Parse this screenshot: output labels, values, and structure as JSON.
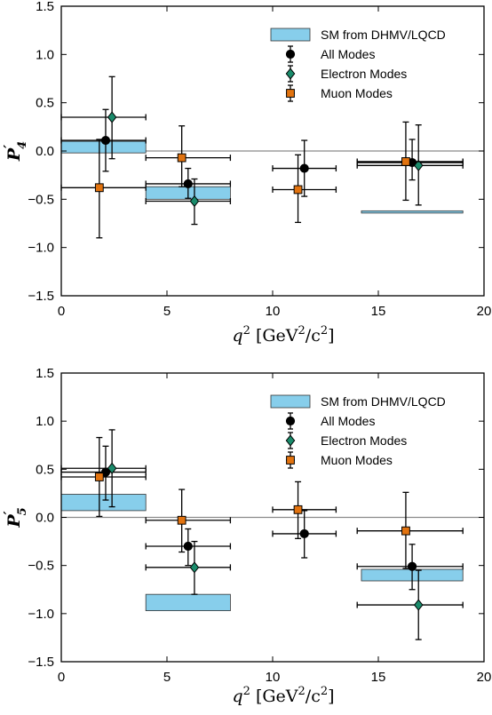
{
  "chart_data": [
    {
      "type": "scatter",
      "panel": "P4prime",
      "ylabel": {
        "main": "P",
        "prime": "′",
        "sub": "4"
      },
      "xlabel": {
        "var": "q",
        "sup": "2",
        "unit_open": "[GeV",
        "unit_sup": "2",
        "unit_close": "/c",
        "unit_sup2": "2",
        "unit_end": "]"
      },
      "xlim": [
        0,
        20
      ],
      "ylim": [
        -1.5,
        1.5
      ],
      "xticks": [
        "0",
        "5",
        "10",
        "15",
        "20"
      ],
      "yticks": [
        "−1.5",
        "−1.0",
        "−0.5",
        "0.0",
        "0.5",
        "1.0",
        "1.5"
      ],
      "reference_line_y": 0,
      "legend": {
        "placement": "top-right",
        "entries": [
          "SM from DHMV/LQCD",
          "All Modes",
          "Electron Modes",
          "Muon Modes"
        ]
      },
      "sm_prediction": {
        "name": "SM from DHMV/LQCD",
        "color": "#87ceeb",
        "bins": [
          {
            "x0": 0,
            "x1": 4,
            "y0": -0.02,
            "y1": 0.1
          },
          {
            "x0": 4,
            "x1": 8,
            "y0": -0.5,
            "y1": -0.37
          },
          {
            "x0": 14.2,
            "x1": 19,
            "y0": -0.64,
            "y1": -0.62
          }
        ]
      },
      "series": [
        {
          "name": "All Modes",
          "marker": "circle",
          "color": "#000000",
          "points": [
            {
              "x": 2.1,
              "xlo": 0,
              "xhi": 4,
              "y": 0.11,
              "ylo": -0.21,
              "yhi": 0.43
            },
            {
              "x": 6.0,
              "xlo": 4,
              "xhi": 8,
              "y": -0.34,
              "ylo": -0.49,
              "yhi": -0.18
            },
            {
              "x": 11.5,
              "xlo": 10,
              "xhi": 13,
              "y": -0.18,
              "ylo": -0.47,
              "yhi": 0.11
            },
            {
              "x": 16.6,
              "xlo": 14,
              "xhi": 19,
              "y": -0.12,
              "ylo": -0.3,
              "yhi": 0.12
            }
          ]
        },
        {
          "name": "Electron Modes",
          "marker": "diamond",
          "color": "#1a8b6b",
          "points": [
            {
              "x": 2.4,
              "xlo": 0,
              "xhi": 4,
              "y": 0.35,
              "ylo": -0.08,
              "yhi": 0.77
            },
            {
              "x": 6.3,
              "xlo": 4,
              "xhi": 8,
              "y": -0.52,
              "ylo": -0.76,
              "yhi": -0.29
            },
            {
              "x": 16.9,
              "xlo": 14,
              "xhi": 19,
              "y": -0.15,
              "ylo": -0.56,
              "yhi": 0.27
            }
          ]
        },
        {
          "name": "Muon Modes",
          "marker": "square",
          "color": "#e2730f",
          "points": [
            {
              "x": 1.8,
              "xlo": 0,
              "xhi": 4,
              "y": -0.38,
              "ylo": -0.9,
              "yhi": 0.12
            },
            {
              "x": 5.7,
              "xlo": 4,
              "xhi": 8,
              "y": -0.07,
              "ylo": -0.37,
              "yhi": 0.26
            },
            {
              "x": 11.2,
              "xlo": 10,
              "xhi": 13,
              "y": -0.4,
              "ylo": -0.74,
              "yhi": -0.04
            },
            {
              "x": 16.3,
              "xlo": 14,
              "xhi": 19,
              "y": -0.11,
              "ylo": -0.51,
              "yhi": 0.3
            }
          ]
        }
      ]
    },
    {
      "type": "scatter",
      "panel": "P5prime",
      "ylabel": {
        "main": "P",
        "prime": "′",
        "sub": "5"
      },
      "xlabel": {
        "var": "q",
        "sup": "2",
        "unit_open": "[GeV",
        "unit_sup": "2",
        "unit_close": "/c",
        "unit_sup2": "2",
        "unit_end": "]"
      },
      "xlim": [
        0,
        20
      ],
      "ylim": [
        -1.5,
        1.5
      ],
      "xticks": [
        "0",
        "5",
        "10",
        "15",
        "20"
      ],
      "yticks": [
        "−1.5",
        "−1.0",
        "−0.5",
        "0.0",
        "0.5",
        "1.0",
        "1.5"
      ],
      "reference_line_y": 0,
      "legend": {
        "placement": "top-right",
        "entries": [
          "SM from DHMV/LQCD",
          "All Modes",
          "Electron Modes",
          "Muon Modes"
        ]
      },
      "sm_prediction": {
        "name": "SM from DHMV/LQCD",
        "color": "#87ceeb",
        "bins": [
          {
            "x0": 0,
            "x1": 4,
            "y0": 0.07,
            "y1": 0.24
          },
          {
            "x0": 4,
            "x1": 8,
            "y0": -0.97,
            "y1": -0.8
          },
          {
            "x0": 14.2,
            "x1": 19,
            "y0": -0.66,
            "y1": -0.54
          }
        ]
      },
      "series": [
        {
          "name": "All Modes",
          "marker": "circle",
          "color": "#000000",
          "points": [
            {
              "x": 2.1,
              "xlo": 0,
              "xhi": 4,
              "y": 0.47,
              "ylo": 0.18,
              "yhi": 0.74
            },
            {
              "x": 6.0,
              "xlo": 4,
              "xhi": 8,
              "y": -0.3,
              "ylo": -0.5,
              "yhi": -0.12
            },
            {
              "x": 11.5,
              "xlo": 10,
              "xhi": 13,
              "y": -0.17,
              "ylo": -0.42,
              "yhi": 0.07
            },
            {
              "x": 16.6,
              "xlo": 14,
              "xhi": 19,
              "y": -0.51,
              "ylo": -0.75,
              "yhi": -0.28
            }
          ]
        },
        {
          "name": "Electron Modes",
          "marker": "diamond",
          "color": "#1a8b6b",
          "points": [
            {
              "x": 2.4,
              "xlo": 0,
              "xhi": 4,
              "y": 0.51,
              "ylo": 0.11,
              "yhi": 0.91
            },
            {
              "x": 6.3,
              "xlo": 4,
              "xhi": 8,
              "y": -0.52,
              "ylo": -0.8,
              "yhi": -0.25
            },
            {
              "x": 16.9,
              "xlo": 14,
              "xhi": 19,
              "y": -0.91,
              "ylo": -1.27,
              "yhi": -0.55
            }
          ]
        },
        {
          "name": "Muon Modes",
          "marker": "square",
          "color": "#e2730f",
          "points": [
            {
              "x": 1.8,
              "xlo": 0,
              "xhi": 4,
              "y": 0.42,
              "ylo": 0.01,
              "yhi": 0.83
            },
            {
              "x": 5.7,
              "xlo": 4,
              "xhi": 8,
              "y": -0.03,
              "ylo": -0.36,
              "yhi": 0.29
            },
            {
              "x": 11.2,
              "xlo": 10,
              "xhi": 13,
              "y": 0.08,
              "ylo": -0.22,
              "yhi": 0.37
            },
            {
              "x": 16.3,
              "xlo": 14,
              "xhi": 19,
              "y": -0.14,
              "ylo": -0.53,
              "yhi": 0.26
            }
          ]
        }
      ]
    }
  ]
}
